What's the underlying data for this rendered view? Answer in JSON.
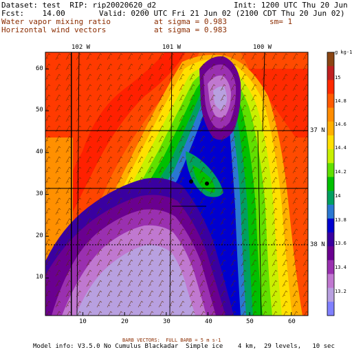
{
  "header": {
    "dataset_line": "Dataset: test  RIP: rip20020620_d2",
    "init_line": "Init: 1200 UTC Thu 20 Jun 02",
    "fcst_line": "Fcst:    14.00",
    "valid_line": "Valid: 0200 UTC Fri 21 Jun 02 (2100 CDT Thu 20 Jun 02)",
    "field1_name": "Water vapor mixing ratio",
    "field1_level": "at sigma = 0.983",
    "field1_extra": "sm= 1",
    "field2_name": "Horizontal wind vectors",
    "field2_level": "at sigma = 0.983"
  },
  "map": {
    "lon_labels": [
      "102 W",
      "101 W",
      "100 W"
    ],
    "lat_labels": [
      "37 N",
      "38 N"
    ],
    "x_ticks": [
      "10",
      "20",
      "30",
      "40",
      "50",
      "60"
    ],
    "y_ticks": [
      "10",
      "20",
      "30",
      "40",
      "50",
      "60"
    ],
    "x_range": [
      1,
      64
    ],
    "y_range": [
      1,
      64
    ]
  },
  "colorbar": {
    "units": "g kg-1",
    "labels": [
      "15",
      "14.8",
      "14.6",
      "14.4",
      "14.2",
      "14",
      "13.8",
      "13.6",
      "13.4",
      "13.2"
    ],
    "colors": [
      "#8b4513",
      "#c02020",
      "#ff2a00",
      "#ff5a00",
      "#ff8c00",
      "#ffb000",
      "#ffe000",
      "#c8f000",
      "#60e000",
      "#00c000",
      "#00a060",
      "#2a78d2",
      "#0000d0",
      "#3a00a0",
      "#6a0090",
      "#9a30b0",
      "#c078d0",
      "#b8a0e0",
      "#8080ff"
    ]
  },
  "footer": {
    "barb_label": "BARB VECTORS:  FULL BARB = 5 m s-1",
    "model_info": "Model info: V3.5.0 No Cumulus Blackadar  Simple ice    4 km,  29 levels,   10 sec"
  }
}
